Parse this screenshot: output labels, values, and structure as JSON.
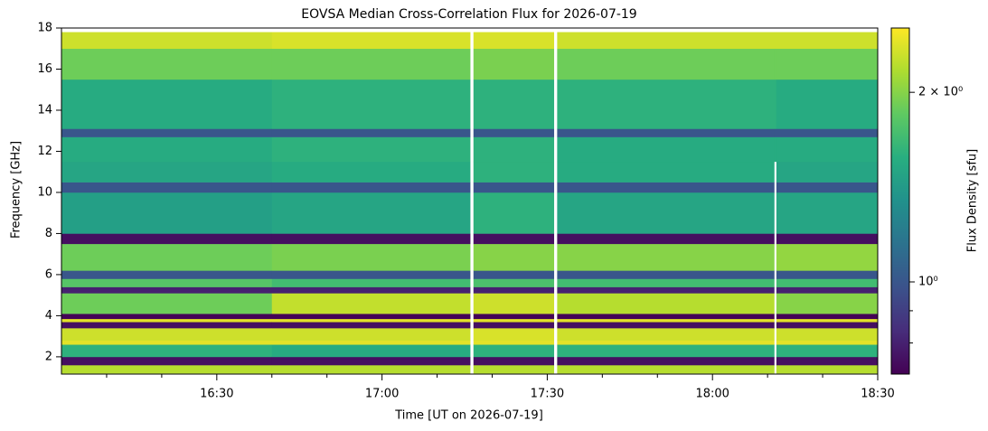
{
  "chart_data": {
    "type": "heatmap",
    "title": "EOVSA Median Cross-Correlation Flux for 2026-07-19",
    "xlabel": "Time [UT on 2026-07-19]",
    "ylabel": "Frequency [GHz]",
    "colorbar_label": "Flux Density [sfu]",
    "colormap": "viridis",
    "color_scale": "log",
    "clim": [
      0.714,
      2.53
    ],
    "cticks": [
      {
        "value": 1,
        "label": "10⁰"
      },
      {
        "value": 2,
        "label": "2 × 10⁰"
      }
    ],
    "cminorticks": [
      0.8,
      0.9
    ],
    "xlim": [
      961.8,
      1110
    ],
    "xticks": [
      {
        "value": 990,
        "label": "16:30"
      },
      {
        "value": 1020,
        "label": "17:00"
      },
      {
        "value": 1050,
        "label": "17:30"
      },
      {
        "value": 1080,
        "label": "18:00"
      },
      {
        "value": 1110,
        "label": "18:30"
      }
    ],
    "xminorticks": [
      970,
      980,
      1000,
      1010,
      1030,
      1040,
      1060,
      1070,
      1090,
      1100
    ],
    "ylim": [
      1.16,
      18
    ],
    "yticks": [
      2,
      4,
      6,
      8,
      10,
      12,
      14,
      16,
      18
    ],
    "x_edges": [
      961.8,
      1000,
      1036,
      1036.6,
      1051.2,
      1051.8,
      1091.2,
      1091.6,
      1110
    ],
    "y_edges": [
      1.2,
      1.6,
      2.0,
      2.6,
      2.8,
      3.4,
      3.7,
      3.85,
      4.1,
      5.1,
      5.4,
      5.8,
      6.2,
      7.5,
      8.0,
      10.0,
      10.5,
      11.5,
      12.7,
      13.1,
      15.5,
      17.0,
      17.8
    ],
    "values": [
      [
        2.2,
        0.75,
        1.6,
        2.4,
        2.3,
        0.75,
        2.4,
        0.72,
        1.9,
        0.8,
        1.8,
        1.0,
        1.9,
        0.75,
        1.45,
        1.0,
        1.5,
        1.55,
        1.0,
        1.55,
        1.9,
        2.3
      ],
      [
        2.2,
        0.75,
        1.55,
        2.4,
        2.3,
        0.75,
        2.4,
        0.72,
        2.25,
        0.8,
        1.7,
        1.0,
        1.95,
        0.75,
        1.5,
        1.0,
        1.55,
        1.6,
        1.0,
        1.6,
        1.9,
        2.35
      ],
      [
        null,
        null,
        null,
        null,
        null,
        null,
        null,
        null,
        null,
        null,
        null,
        null,
        null,
        null,
        null,
        null,
        null,
        null,
        null,
        null,
        null,
        null
      ],
      [
        2.2,
        0.75,
        1.6,
        2.4,
        2.35,
        0.75,
        2.4,
        0.72,
        2.3,
        0.8,
        1.75,
        1.0,
        2.0,
        0.75,
        1.6,
        1.0,
        1.6,
        1.6,
        1.0,
        1.6,
        1.95,
        2.35
      ],
      [
        null,
        null,
        null,
        null,
        null,
        null,
        null,
        null,
        null,
        null,
        null,
        null,
        null,
        null,
        null,
        null,
        null,
        null,
        null,
        null,
        null,
        null
      ],
      [
        2.2,
        0.75,
        1.6,
        2.4,
        2.3,
        0.75,
        2.4,
        0.72,
        2.2,
        0.8,
        1.7,
        1.0,
        2.0,
        0.75,
        1.5,
        1.0,
        1.55,
        1.55,
        1.0,
        1.6,
        1.9,
        2.3
      ],
      [
        null,
        null,
        null,
        null,
        null,
        null,
        null,
        null,
        null,
        null,
        null,
        null,
        null,
        null,
        null,
        null,
        null,
        1.55,
        1.0,
        1.6,
        1.9,
        2.3
      ],
      [
        2.2,
        0.75,
        1.6,
        2.4,
        2.3,
        0.75,
        2.4,
        0.72,
        2.0,
        0.8,
        1.7,
        1.0,
        2.05,
        0.75,
        1.5,
        1.0,
        1.5,
        1.55,
        1.0,
        1.55,
        1.9,
        2.3
      ]
    ]
  }
}
